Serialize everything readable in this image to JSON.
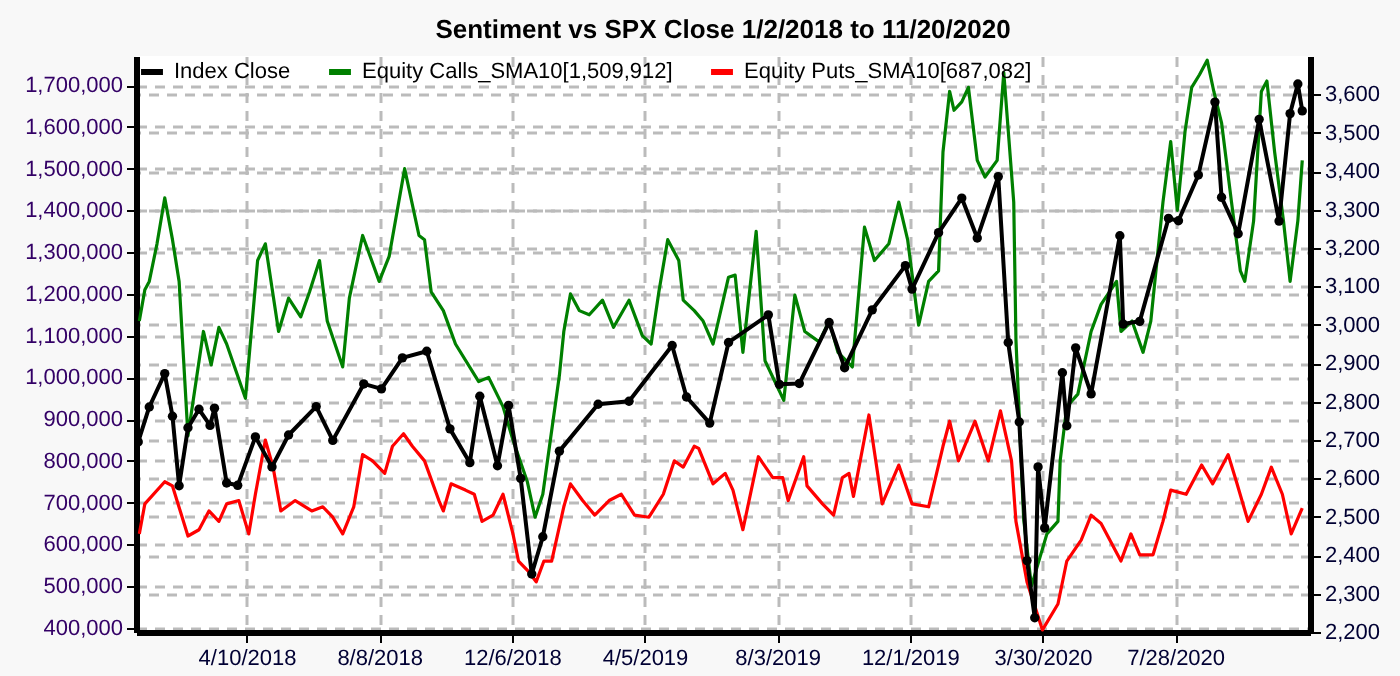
{
  "chart_data": {
    "type": "line",
    "title": "Sentiment vs SPX Close 1/2/2018 to 11/20/2020",
    "legend": "top left",
    "grid": true,
    "xlim": [
      "2017-12-31",
      "2020-11-27"
    ],
    "xticks": [
      {
        "value": "2018-04-10",
        "label": "4/10/2018"
      },
      {
        "value": "2018-08-08",
        "label": "8/8/2018"
      },
      {
        "value": "2018-12-06",
        "label": "12/6/2018"
      },
      {
        "value": "2019-04-05",
        "label": "4/5/2019"
      },
      {
        "value": "2019-08-03",
        "label": "8/3/2019"
      },
      {
        "value": "2019-12-01",
        "label": "12/1/2019"
      },
      {
        "value": "2020-03-30",
        "label": "3/30/2020"
      },
      {
        "value": "2020-07-28",
        "label": "7/28/2020"
      }
    ],
    "ylim": [
      390000,
      1770000
    ],
    "yticks": [
      {
        "value": 400000,
        "label": "400,000"
      },
      {
        "value": 500000,
        "label": "500,000"
      },
      {
        "value": 600000,
        "label": "600,000"
      },
      {
        "value": 700000,
        "label": "700,000"
      },
      {
        "value": 800000,
        "label": "800,000"
      },
      {
        "value": 900000,
        "label": "900,000"
      },
      {
        "value": 1000000,
        "label": "1,000,000"
      },
      {
        "value": 1100000,
        "label": "1,100,000"
      },
      {
        "value": 1200000,
        "label": "1,200,000"
      },
      {
        "value": 1300000,
        "label": "1,300,000"
      },
      {
        "value": 1400000,
        "label": "1,400,000"
      },
      {
        "value": 1500000,
        "label": "1,500,000"
      },
      {
        "value": 1600000,
        "label": "1,600,000"
      },
      {
        "value": 1700000,
        "label": "1,700,000"
      }
    ],
    "y2lim": [
      2200,
      3700
    ],
    "y2ticks": [
      {
        "value": 2200,
        "label": "2,200"
      },
      {
        "value": 2300,
        "label": "2,300"
      },
      {
        "value": 2400,
        "label": "2,400"
      },
      {
        "value": 2500,
        "label": "2,500"
      },
      {
        "value": 2600,
        "label": "2,600"
      },
      {
        "value": 2700,
        "label": "2,700"
      },
      {
        "value": 2800,
        "label": "2,800"
      },
      {
        "value": 2900,
        "label": "2,900"
      },
      {
        "value": 3000,
        "label": "3,000"
      },
      {
        "value": 3100,
        "label": "3,100"
      },
      {
        "value": 3200,
        "label": "3,200"
      },
      {
        "value": 3300,
        "label": "3,300"
      },
      {
        "value": 3400,
        "label": "3,400"
      },
      {
        "value": 3500,
        "label": "3,500"
      },
      {
        "value": 3600,
        "label": "3,600"
      }
    ],
    "series": [
      {
        "name": "Index Close",
        "color": "#000000",
        "axis": "y2",
        "marker": "circle",
        "x": [
          "2018-01-02",
          "2018-01-12",
          "2018-01-26",
          "2018-02-02",
          "2018-02-08",
          "2018-02-16",
          "2018-02-26",
          "2018-03-08",
          "2018-03-12",
          "2018-03-23",
          "2018-04-02",
          "2018-04-18",
          "2018-05-03",
          "2018-05-18",
          "2018-06-12",
          "2018-06-27",
          "2018-07-25",
          "2018-08-10",
          "2018-08-29",
          "2018-09-20",
          "2018-10-11",
          "2018-10-29",
          "2018-11-07",
          "2018-11-23",
          "2018-12-03",
          "2018-12-14",
          "2018-12-24",
          "2019-01-03",
          "2019-01-18",
          "2019-02-22",
          "2019-03-22",
          "2019-04-30",
          "2019-05-13",
          "2019-06-03",
          "2019-06-20",
          "2019-07-26",
          "2019-08-05",
          "2019-08-23",
          "2019-09-19",
          "2019-10-03",
          "2019-10-28",
          "2019-11-27",
          "2019-12-03",
          "2019-12-27",
          "2020-01-17",
          "2020-01-31",
          "2020-02-19",
          "2020-02-28",
          "2020-03-09",
          "2020-03-16",
          "2020-03-23",
          "2020-03-26",
          "2020-04-01",
          "2020-04-17",
          "2020-04-21",
          "2020-04-29",
          "2020-05-13",
          "2020-06-08",
          "2020-06-11",
          "2020-06-26",
          "2020-07-22",
          "2020-07-31",
          "2020-08-18",
          "2020-09-02",
          "2020-09-08",
          "2020-09-23",
          "2020-10-12",
          "2020-10-30",
          "2020-11-09",
          "2020-11-16",
          "2020-11-20"
        ],
        "values": [
          2695,
          2786,
          2873,
          2762,
          2581,
          2732,
          2780,
          2738,
          2783,
          2588,
          2582,
          2708,
          2630,
          2713,
          2787,
          2699,
          2846,
          2833,
          2914,
          2931,
          2729,
          2641,
          2814,
          2633,
          2790,
          2600,
          2351,
          2448,
          2671,
          2793,
          2801,
          2946,
          2812,
          2744,
          2954,
          3026,
          2845,
          2847,
          3006,
          2888,
          3039,
          3154,
          3093,
          3240,
          3330,
          3226,
          3386,
          2954,
          2747,
          2386,
          2237,
          2630,
          2471,
          2875,
          2737,
          2940,
          2820,
          3232,
          3002,
          3009,
          3277,
          3271,
          3390,
          3580,
          3332,
          3237,
          3535,
          3270,
          3550,
          3627,
          3557
        ]
      },
      {
        "name": "Equity Calls_SMA10[1,509,912]",
        "color": "#008000",
        "x": [
          "2018-01-03",
          "2018-01-08",
          "2018-01-12",
          "2018-01-19",
          "2018-01-26",
          "2018-02-02",
          "2018-02-08",
          "2018-02-16",
          "2018-03-02",
          "2018-03-09",
          "2018-03-16",
          "2018-03-23",
          "2018-04-09",
          "2018-04-20",
          "2018-04-27",
          "2018-05-09",
          "2018-05-18",
          "2018-05-29",
          "2018-06-06",
          "2018-06-15",
          "2018-06-22",
          "2018-07-06",
          "2018-07-12",
          "2018-07-24",
          "2018-08-08",
          "2018-08-17",
          "2018-08-31",
          "2018-09-13",
          "2018-09-18",
          "2018-09-24",
          "2018-10-05",
          "2018-10-16",
          "2018-11-06",
          "2018-11-15",
          "2018-11-28",
          "2018-12-07",
          "2018-12-20",
          "2018-12-27",
          "2019-01-03",
          "2019-01-18",
          "2019-01-22",
          "2019-01-28",
          "2019-02-05",
          "2019-02-14",
          "2019-02-26",
          "2019-03-08",
          "2019-03-22",
          "2019-04-03",
          "2019-04-11",
          "2019-04-18",
          "2019-04-26",
          "2019-05-06",
          "2019-05-10",
          "2019-05-20",
          "2019-05-28",
          "2019-06-06",
          "2019-06-20",
          "2019-06-26",
          "2019-07-03",
          "2019-07-15",
          "2019-07-23",
          "2019-08-09",
          "2019-08-19",
          "2019-08-28",
          "2019-09-10",
          "2019-09-19",
          "2019-09-27",
          "2019-10-10",
          "2019-10-21",
          "2019-10-30",
          "2019-11-12",
          "2019-11-21",
          "2019-11-29",
          "2019-12-09",
          "2019-12-18",
          "2019-12-27",
          "2019-12-31",
          "2020-01-06",
          "2020-01-10",
          "2020-01-17",
          "2020-01-23",
          "2020-01-31",
          "2020-02-07",
          "2020-02-18",
          "2020-02-24",
          "2020-03-04",
          "2020-03-06",
          "2020-03-13",
          "2020-03-20",
          "2020-04-03",
          "2020-04-13",
          "2020-04-15",
          "2020-04-21",
          "2020-05-01",
          "2020-05-13",
          "2020-05-22",
          "2020-06-05",
          "2020-06-09",
          "2020-06-19",
          "2020-06-29",
          "2020-07-06",
          "2020-07-17",
          "2020-07-24",
          "2020-07-30",
          "2020-08-06",
          "2020-08-12",
          "2020-08-19",
          "2020-08-26",
          "2020-09-01",
          "2020-09-08",
          "2020-09-17",
          "2020-09-25",
          "2020-09-29",
          "2020-10-07",
          "2020-10-14",
          "2020-10-19",
          "2020-10-26",
          "2020-11-03",
          "2020-11-09",
          "2020-11-16",
          "2020-11-20"
        ],
        "values": [
          1135000,
          1210000,
          1230000,
          1320000,
          1430000,
          1330000,
          1230000,
          860000,
          1110000,
          1030000,
          1120000,
          1080000,
          950000,
          1280000,
          1320000,
          1110000,
          1190000,
          1145000,
          1205000,
          1280000,
          1135000,
          1025000,
          1190000,
          1340000,
          1230000,
          1290000,
          1500000,
          1340000,
          1330000,
          1205000,
          1160000,
          1080000,
          990000,
          1000000,
          930000,
          850000,
          750000,
          665000,
          720000,
          1005000,
          1110000,
          1200000,
          1160000,
          1150000,
          1185000,
          1120000,
          1185000,
          1100000,
          1080000,
          1205000,
          1330000,
          1280000,
          1185000,
          1160000,
          1135000,
          1080000,
          1240000,
          1245000,
          1060000,
          1350000,
          1040000,
          945000,
          1197000,
          1110000,
          1085000,
          1135000,
          1060000,
          1025000,
          1360000,
          1280000,
          1320000,
          1420000,
          1330000,
          1125000,
          1230000,
          1255000,
          1540000,
          1685000,
          1640000,
          1660000,
          1695000,
          1520000,
          1480000,
          1520000,
          1730000,
          1420000,
          1090000,
          660000,
          500000,
          625000,
          655000,
          800000,
          930000,
          960000,
          1110000,
          1175000,
          1230000,
          1110000,
          1135000,
          1060000,
          1135000,
          1420000,
          1565000,
          1400000,
          1590000,
          1695000,
          1725000,
          1760000,
          1685000,
          1610000,
          1420000,
          1255000,
          1230000,
          1375000,
          1685000,
          1710000,
          1540000,
          1375000,
          1230000,
          1375000,
          1520000
        ]
      },
      {
        "name": "Equity Puts_SMA10[687,082]",
        "color": "#ff0000",
        "x": [
          "2018-01-03",
          "2018-01-08",
          "2018-01-26",
          "2018-02-02",
          "2018-02-16",
          "2018-02-26",
          "2018-03-07",
          "2018-03-16",
          "2018-03-23",
          "2018-04-03",
          "2018-04-12",
          "2018-04-18",
          "2018-04-27",
          "2018-05-04",
          "2018-05-11",
          "2018-05-24",
          "2018-06-08",
          "2018-06-18",
          "2018-06-27",
          "2018-07-06",
          "2018-07-16",
          "2018-07-24",
          "2018-08-02",
          "2018-08-13",
          "2018-08-20",
          "2018-08-30",
          "2018-09-07",
          "2018-09-18",
          "2018-10-01",
          "2018-10-05",
          "2018-10-12",
          "2018-10-25",
          "2018-11-02",
          "2018-11-09",
          "2018-11-19",
          "2018-11-28",
          "2018-12-07",
          "2018-12-12",
          "2018-12-21",
          "2018-12-28",
          "2019-01-04",
          "2019-01-11",
          "2019-01-22",
          "2019-01-28",
          "2019-02-08",
          "2019-02-19",
          "2019-03-04",
          "2019-03-15",
          "2019-03-27",
          "2019-04-09",
          "2019-04-22",
          "2019-05-02",
          "2019-05-10",
          "2019-05-20",
          "2019-05-24",
          "2019-06-06",
          "2019-06-17",
          "2019-06-24",
          "2019-07-03",
          "2019-07-17",
          "2019-07-30",
          "2019-08-08",
          "2019-08-13",
          "2019-08-27",
          "2019-08-30",
          "2019-09-13",
          "2019-09-23",
          "2019-10-01",
          "2019-10-07",
          "2019-10-11",
          "2019-10-25",
          "2019-11-06",
          "2019-11-21",
          "2019-12-03",
          "2019-12-18",
          "2019-12-31",
          "2020-01-06",
          "2020-01-14",
          "2020-01-29",
          "2020-02-10",
          "2020-02-21",
          "2020-03-02",
          "2020-03-06",
          "2020-03-16",
          "2020-03-30",
          "2020-04-13",
          "2020-04-21",
          "2020-05-04",
          "2020-05-13",
          "2020-05-22",
          "2020-06-09",
          "2020-06-18",
          "2020-06-26",
          "2020-07-08",
          "2020-07-17",
          "2020-07-24",
          "2020-08-07",
          "2020-08-21",
          "2020-08-31",
          "2020-09-14",
          "2020-09-22",
          "2020-10-02",
          "2020-10-14",
          "2020-10-23",
          "2020-11-02",
          "2020-11-10",
          "2020-11-20"
        ],
        "values": [
          625000,
          697000,
          750000,
          740000,
          620000,
          635000,
          680000,
          655000,
          697000,
          705000,
          625000,
          720000,
          850000,
          785000,
          680000,
          705000,
          680000,
          690000,
          665000,
          625000,
          690000,
          815000,
          800000,
          770000,
          835000,
          865000,
          835000,
          800000,
          705000,
          680000,
          745000,
          730000,
          720000,
          655000,
          670000,
          720000,
          625000,
          560000,
          535000,
          510000,
          560000,
          560000,
          690000,
          745000,
          705000,
          670000,
          705000,
          720000,
          670000,
          665000,
          720000,
          800000,
          785000,
          835000,
          830000,
          745000,
          770000,
          730000,
          635000,
          810000,
          760000,
          760000,
          705000,
          810000,
          740000,
          697000,
          670000,
          760000,
          770000,
          715000,
          910000,
          697000,
          790000,
          697000,
          690000,
          835000,
          895000,
          800000,
          895000,
          800000,
          920000,
          800000,
          655000,
          510000,
          395000,
          457000,
          560000,
          610000,
          670000,
          650000,
          560000,
          625000,
          575000,
          575000,
          655000,
          730000,
          720000,
          790000,
          745000,
          815000,
          745000,
          655000,
          720000,
          785000,
          720000,
          625000,
          687000
        ]
      }
    ]
  }
}
